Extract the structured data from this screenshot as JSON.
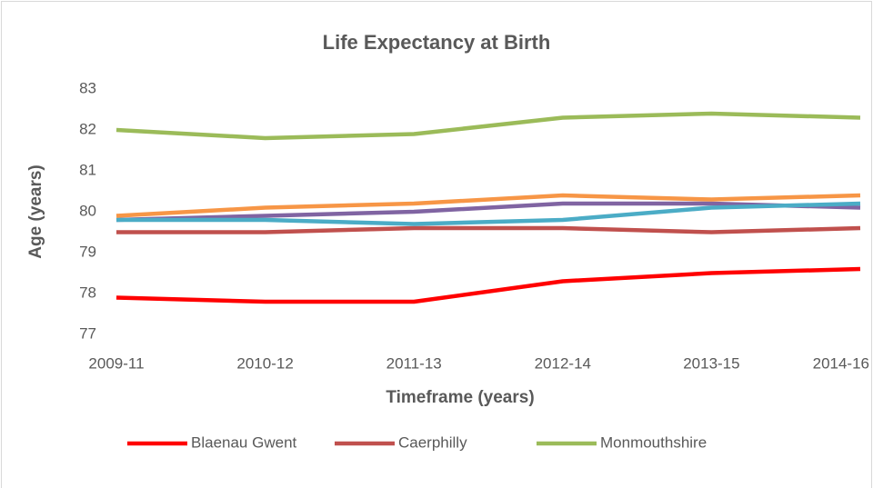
{
  "chart_data": {
    "type": "line",
    "title": "Life Expectancy at Birth",
    "x_label": "Timeframe (years)",
    "y_label": "Age (years)",
    "categories": [
      "2009-11",
      "2010-12",
      "2011-13",
      "2012-14",
      "2013-15",
      "2014-16"
    ],
    "ylim": [
      77,
      83
    ],
    "yticks": [
      77,
      78,
      79,
      80,
      81,
      82,
      83
    ],
    "grid": false,
    "series": [
      {
        "name": "Blaenau Gwent",
        "color": "#ff0000",
        "values": [
          77.9,
          77.8,
          77.8,
          78.3,
          78.5,
          78.6
        ]
      },
      {
        "name": "Caerphilly",
        "color": "#c0504d",
        "values": [
          79.5,
          79.5,
          79.6,
          79.6,
          79.5,
          79.6
        ]
      },
      {
        "name": "Monmouthshire",
        "color": "#9bbb59",
        "values": [
          82.0,
          81.8,
          81.9,
          82.3,
          82.4,
          82.3
        ]
      },
      {
        "color": "#8064a2",
        "values": [
          79.8,
          79.9,
          80.0,
          80.2,
          80.2,
          80.1
        ]
      },
      {
        "color": "#4bacc6",
        "values": [
          79.8,
          79.8,
          79.7,
          79.8,
          80.1,
          80.2
        ]
      },
      {
        "color": "#f79646",
        "values": [
          79.9,
          80.1,
          80.2,
          80.4,
          80.3,
          80.4
        ]
      }
    ]
  }
}
